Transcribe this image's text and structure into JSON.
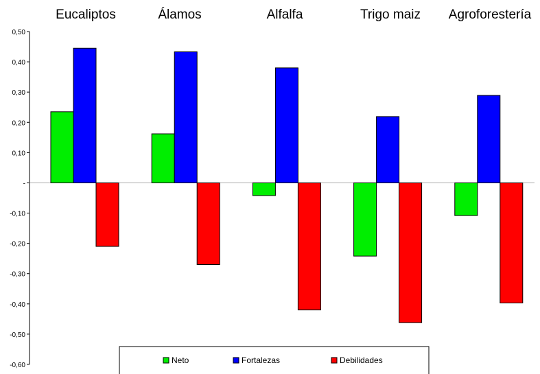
{
  "chart_data": {
    "type": "bar",
    "categories": [
      "Eucaliptos",
      "Álamos",
      "Alfalfa",
      "Trigo maiz",
      "Agroforestería"
    ],
    "series": [
      {
        "name": "Neto",
        "color": "#00ee00",
        "values": [
          0.235,
          0.162,
          -0.042,
          -0.242,
          -0.108
        ]
      },
      {
        "name": "Fortalezas",
        "color": "#0000ff",
        "values": [
          0.445,
          0.433,
          0.38,
          0.219,
          0.289
        ]
      },
      {
        "name": "Debilidades",
        "color": "#ff0000",
        "values": [
          -0.21,
          -0.27,
          -0.42,
          -0.462,
          -0.397
        ]
      }
    ],
    "ylim": [
      -0.6,
      0.5
    ],
    "yticks": [
      0.5,
      0.4,
      0.3,
      0.2,
      0.1,
      0.0,
      -0.1,
      -0.2,
      -0.3,
      -0.4,
      -0.5,
      -0.6
    ],
    "ytick_labels": [
      "0,50",
      "0,40",
      "0,30",
      "0,20",
      "0,10",
      "-",
      "-0,10",
      "-0,20",
      "-0,30",
      "-0,40",
      "-0,50",
      "-0,60"
    ],
    "category_labels_position": "top",
    "legend_position": "bottom-center",
    "grid": false
  }
}
